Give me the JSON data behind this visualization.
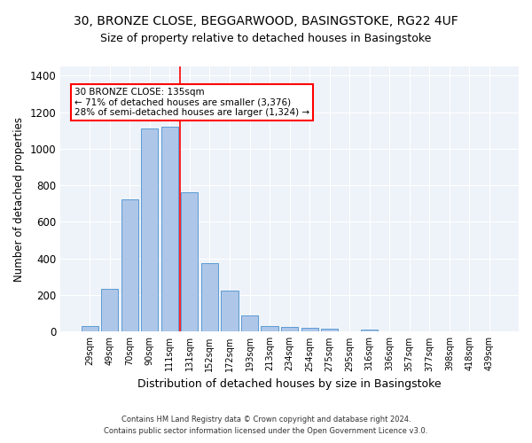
{
  "title_line1": "30, BRONZE CLOSE, BEGGARWOOD, BASINGSTOKE, RG22 4UF",
  "title_line2": "Size of property relative to detached houses in Basingstoke",
  "xlabel": "Distribution of detached houses by size in Basingstoke",
  "ylabel": "Number of detached properties",
  "categories": [
    "29sqm",
    "49sqm",
    "70sqm",
    "90sqm",
    "111sqm",
    "131sqm",
    "152sqm",
    "172sqm",
    "193sqm",
    "213sqm",
    "234sqm",
    "254sqm",
    "275sqm",
    "295sqm",
    "316sqm",
    "336sqm",
    "357sqm",
    "377sqm",
    "398sqm",
    "418sqm",
    "439sqm"
  ],
  "values": [
    30,
    235,
    725,
    1110,
    1120,
    760,
    375,
    225,
    90,
    30,
    25,
    22,
    15,
    0,
    10,
    0,
    0,
    0,
    0,
    0,
    0
  ],
  "bar_color": "#aec6e8",
  "bar_edge_color": "#5b9bd5",
  "vline_x": 4.5,
  "annotation_text": "30 BRONZE CLOSE: 135sqm\n← 71% of detached houses are smaller (3,376)\n28% of semi-detached houses are larger (1,324) →",
  "annotation_box_color": "white",
  "annotation_box_edge": "red",
  "vline_color": "red",
  "ylim": [
    0,
    1450
  ],
  "yticks": [
    0,
    200,
    400,
    600,
    800,
    1000,
    1200,
    1400
  ],
  "footnote1": "Contains HM Land Registry data © Crown copyright and database right 2024.",
  "footnote2": "Contains public sector information licensed under the Open Government Licence v3.0.",
  "bg_color": "#eef3f9",
  "title_fontsize": 10,
  "subtitle_fontsize": 9,
  "title_fontweight": "normal"
}
